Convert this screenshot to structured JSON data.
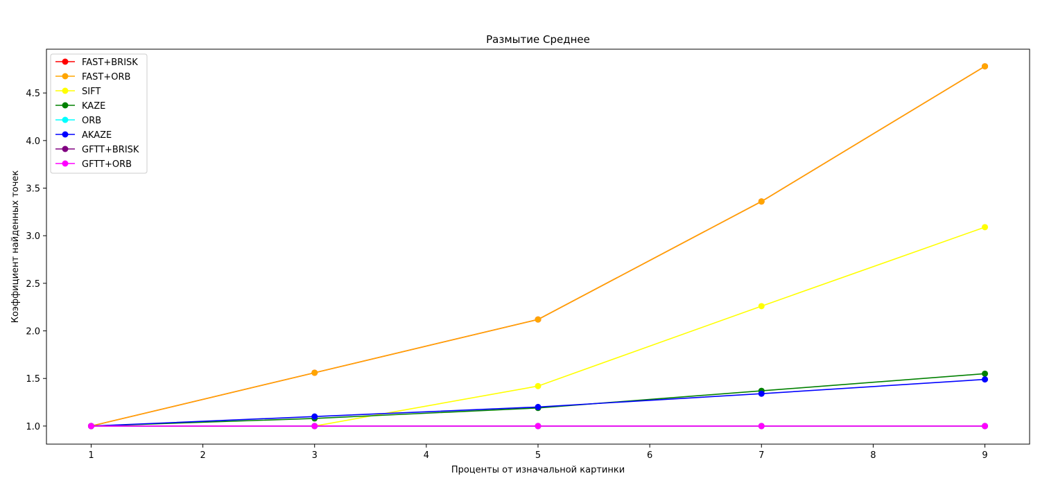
{
  "chart_data": {
    "type": "line",
    "title": "Размытие Среднее",
    "xlabel": "Проценты от изначальной картинки",
    "ylabel": "Коэффициент найденных точек",
    "x": [
      1,
      3,
      5,
      7,
      9
    ],
    "xlim": [
      0.6,
      9.4
    ],
    "ylim": [
      0.81,
      4.96
    ],
    "xticks": [
      1,
      2,
      3,
      4,
      5,
      6,
      7,
      8,
      9
    ],
    "yticks": [
      1.0,
      1.5,
      2.0,
      2.5,
      3.0,
      3.5,
      4.0,
      4.5
    ],
    "ytick_labels": [
      "1.0",
      "1.5",
      "2.0",
      "2.5",
      "3.0",
      "3.5",
      "4.0",
      "4.5"
    ],
    "grid": false,
    "legend_position": "top-left",
    "series": [
      {
        "name": "FAST+BRISK",
        "color": "#ff0000",
        "values": [
          1.0,
          1.56,
          2.12,
          3.36,
          4.78
        ]
      },
      {
        "name": "FAST+ORB",
        "color": "#ffa500",
        "values": [
          1.0,
          1.56,
          2.12,
          3.36,
          4.78
        ]
      },
      {
        "name": "SIFT",
        "color": "#ffff00",
        "values": [
          1.0,
          1.0,
          1.42,
          2.26,
          3.09
        ]
      },
      {
        "name": "KAZE",
        "color": "#008000",
        "values": [
          1.0,
          1.08,
          1.19,
          1.37,
          1.55
        ]
      },
      {
        "name": "ORB",
        "color": "#00ffff",
        "values": [
          1.0,
          1.0,
          1.0,
          1.0,
          1.0
        ]
      },
      {
        "name": "AKAZE",
        "color": "#0000ff",
        "values": [
          1.0,
          1.1,
          1.2,
          1.34,
          1.49
        ]
      },
      {
        "name": "GFTT+BRISK",
        "color": "#800080",
        "values": [
          1.0,
          1.0,
          1.0,
          1.0,
          1.0
        ]
      },
      {
        "name": "GFTT+ORB",
        "color": "#ff00ff",
        "values": [
          1.0,
          1.0,
          1.0,
          1.0,
          1.0
        ]
      }
    ]
  }
}
